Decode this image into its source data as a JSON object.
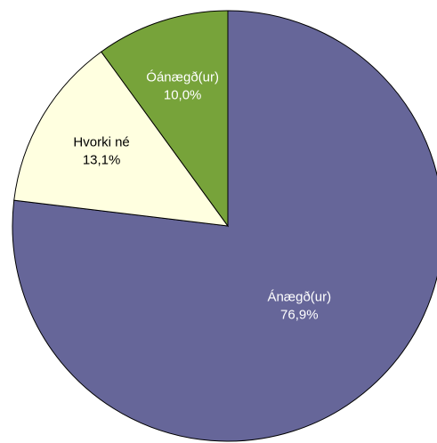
{
  "chart_data": {
    "type": "pie",
    "categories": [
      "Ánægð(ur)",
      "Hvorki né",
      "Óánægð(ur)"
    ],
    "values": [
      76.9,
      13.1,
      10.0
    ],
    "value_labels": [
      "76,9%",
      "13,1%",
      "10,0%"
    ],
    "colors": [
      "#666699",
      "#ffffe0",
      "#77a33a"
    ]
  }
}
